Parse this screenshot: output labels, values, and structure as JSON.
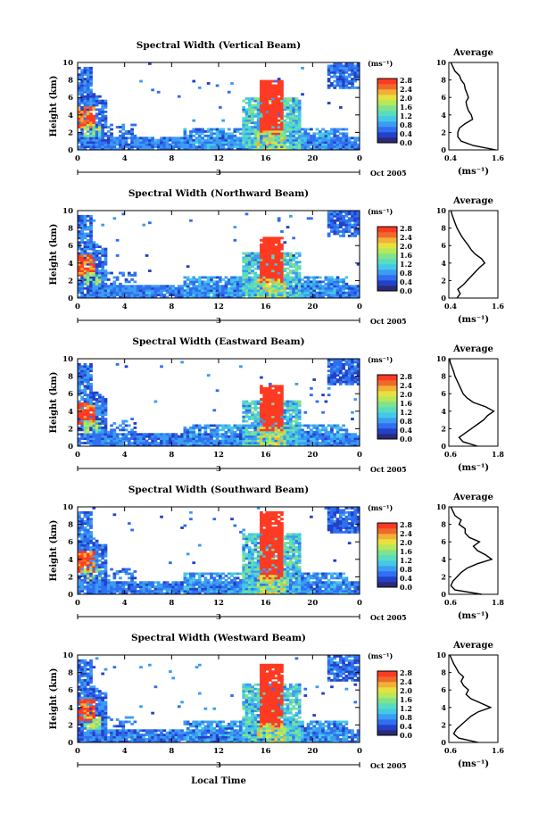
{
  "chart_data": [
    {
      "type": "heatmap",
      "title": "Spectral Width (Vertical Beam)",
      "ylabel": "Height (km)",
      "x_ticks": [
        "0",
        "4",
        "8",
        "12",
        "16",
        "20",
        "0"
      ],
      "day_marker": "3",
      "date_label": "Oct 2005",
      "xlim": [
        0,
        24
      ],
      "ylim": [
        0,
        10
      ],
      "colorbar": {
        "unit": "(ms⁻¹)",
        "ticks": [
          "2.8",
          "2.4",
          "2.0",
          "1.6",
          "1.2",
          "0.8",
          "0.4",
          "0.0"
        ],
        "range": [
          0.0,
          2.8
        ]
      },
      "storm": {
        "center_hour": 16.5,
        "top_km": 8.0
      },
      "average_profile": {
        "title": "Average",
        "xlabel": "(ms⁻¹)",
        "x_ticks": [
          "0.4",
          "1.6"
        ],
        "xlim": [
          0.4,
          1.6
        ],
        "y_ticks": [
          "0",
          "2",
          "4",
          "6",
          "8",
          "10"
        ],
        "height_km": [
          0.0,
          0.5,
          1.0,
          1.5,
          2.0,
          2.5,
          3.0,
          3.5,
          4.0,
          4.5,
          5.0,
          5.5,
          6.0,
          6.5,
          7.0,
          7.5,
          8.0,
          8.5,
          9.0,
          9.5,
          10.0
        ],
        "width_ms": [
          1.55,
          1.0,
          0.7,
          0.62,
          0.62,
          0.66,
          0.8,
          0.98,
          0.95,
          0.88,
          0.84,
          0.82,
          0.88,
          0.84,
          0.8,
          0.78,
          0.7,
          0.66,
          0.55,
          0.5,
          0.45
        ]
      }
    },
    {
      "type": "heatmap",
      "title": "Spectral Width (Northward Beam)",
      "ylabel": "Height (km)",
      "x_ticks": [
        "0",
        "4",
        "8",
        "12",
        "16",
        "20",
        "0"
      ],
      "day_marker": "3",
      "date_label": "Oct 2005",
      "xlim": [
        0,
        24
      ],
      "ylim": [
        0,
        10
      ],
      "colorbar": {
        "unit": "(ms⁻¹)",
        "ticks": [
          "2.8",
          "2.4",
          "2.0",
          "1.6",
          "1.2",
          "0.8",
          "0.4",
          "0.0"
        ],
        "range": [
          0.0,
          2.8
        ]
      },
      "storm": {
        "center_hour": 16.5,
        "top_km": 7.0
      },
      "average_profile": {
        "title": "Average",
        "xlabel": "(ms⁻¹)",
        "x_ticks": [
          "0.4",
          "1.6"
        ],
        "xlim": [
          0.4,
          1.6
        ],
        "y_ticks": [
          "0",
          "2",
          "4",
          "6",
          "8",
          "10"
        ],
        "height_km": [
          0.0,
          0.5,
          1.0,
          1.5,
          2.0,
          2.5,
          3.0,
          3.5,
          4.0,
          4.5,
          5.0,
          5.5,
          6.0,
          6.5,
          7.0,
          7.5,
          8.0,
          8.5,
          9.0,
          9.5,
          10.0
        ],
        "width_ms": [
          0.6,
          0.68,
          0.62,
          0.75,
          0.85,
          0.95,
          1.05,
          1.15,
          1.28,
          1.2,
          1.05,
          0.95,
          0.88,
          0.8,
          0.72,
          0.66,
          0.6,
          0.56,
          0.52,
          0.48,
          0.45
        ]
      }
    },
    {
      "type": "heatmap",
      "title": "Spectral Width (Eastward Beam)",
      "ylabel": "Height (km)",
      "x_ticks": [
        "0",
        "4",
        "8",
        "12",
        "16",
        "20",
        "0"
      ],
      "day_marker": "3",
      "date_label": "Oct 2005",
      "xlim": [
        0,
        24
      ],
      "ylim": [
        0,
        10
      ],
      "colorbar": {
        "unit": "(ms⁻¹)",
        "ticks": [
          "2.8",
          "2.4",
          "2.0",
          "1.6",
          "1.2",
          "0.8",
          "0.4",
          "0.0"
        ],
        "range": [
          0.0,
          2.8
        ]
      },
      "storm": {
        "center_hour": 16.5,
        "top_km": 7.0
      },
      "average_profile": {
        "title": "Average",
        "xlabel": "(ms⁻¹)",
        "x_ticks": [
          "0.6",
          "1.8"
        ],
        "xlim": [
          0.6,
          1.8
        ],
        "y_ticks": [
          "0",
          "2",
          "4",
          "6",
          "8",
          "10"
        ],
        "height_km": [
          0.0,
          0.5,
          1.0,
          1.5,
          2.0,
          2.5,
          3.0,
          3.5,
          4.0,
          4.5,
          5.0,
          5.5,
          6.0,
          6.5,
          7.0,
          7.5,
          8.0,
          8.5,
          9.0,
          9.5,
          10.0
        ],
        "width_ms": [
          1.3,
          0.95,
          0.85,
          1.0,
          1.15,
          1.3,
          1.45,
          1.55,
          1.7,
          1.5,
          1.2,
          1.05,
          0.95,
          0.9,
          0.85,
          0.8,
          0.75,
          0.72,
          0.68,
          0.64,
          0.62
        ]
      }
    },
    {
      "type": "heatmap",
      "title": "Spectral Width (Southward Beam)",
      "ylabel": "Height (km)",
      "x_ticks": [
        "0",
        "4",
        "8",
        "12",
        "16",
        "20",
        "0"
      ],
      "day_marker": "3",
      "date_label": "Oct 2005",
      "xlim": [
        0,
        24
      ],
      "ylim": [
        0,
        10
      ],
      "colorbar": {
        "unit": "(ms⁻¹)",
        "ticks": [
          "2.8",
          "2.4",
          "2.0",
          "1.6",
          "1.2",
          "0.8",
          "0.4",
          "0.0"
        ],
        "range": [
          0.0,
          2.8
        ]
      },
      "storm": {
        "center_hour": 16.5,
        "top_km": 9.5
      },
      "average_profile": {
        "title": "Average",
        "xlabel": "(ms⁻¹)",
        "x_ticks": [
          "0.6",
          "1.8"
        ],
        "xlim": [
          0.6,
          1.8
        ],
        "y_ticks": [
          "0",
          "2",
          "4",
          "6",
          "8",
          "10"
        ],
        "height_km": [
          0.0,
          0.5,
          1.0,
          1.5,
          2.0,
          2.5,
          3.0,
          3.5,
          4.0,
          4.5,
          5.0,
          5.5,
          6.0,
          6.5,
          7.0,
          7.5,
          8.0,
          8.5,
          9.0,
          9.5,
          10.0
        ],
        "width_ms": [
          1.4,
          0.75,
          0.65,
          0.7,
          0.8,
          0.9,
          1.05,
          1.3,
          1.65,
          1.5,
          1.3,
          1.2,
          1.35,
          1.1,
          1.0,
          1.0,
          0.85,
          0.9,
          0.75,
          0.7,
          0.65
        ]
      }
    },
    {
      "type": "heatmap",
      "title": "Spectral Width (Westward Beam)",
      "ylabel": "Height (km)",
      "x_ticks": [
        "0",
        "4",
        "8",
        "12",
        "16",
        "20",
        "0"
      ],
      "day_marker": "3",
      "date_label": "Oct 2005",
      "xlim": [
        0,
        24
      ],
      "ylim": [
        0,
        10
      ],
      "colorbar": {
        "unit": "(ms⁻¹)",
        "ticks": [
          "2.8",
          "2.4",
          "2.0",
          "1.6",
          "1.2",
          "0.8",
          "0.4",
          "0.0"
        ],
        "range": [
          0.0,
          2.8
        ]
      },
      "storm": {
        "center_hour": 16.5,
        "top_km": 9.0
      },
      "average_profile": {
        "title": "Average",
        "xlabel": "(ms⁻¹)",
        "x_ticks": [
          "0.6",
          "1.6"
        ],
        "xlim": [
          0.6,
          1.6
        ],
        "y_ticks": [
          "0",
          "2",
          "4",
          "6",
          "8",
          "10"
        ],
        "height_km": [
          0.0,
          0.5,
          1.0,
          1.5,
          2.0,
          2.5,
          3.0,
          3.5,
          4.0,
          4.5,
          5.0,
          5.5,
          6.0,
          6.5,
          7.0,
          7.5,
          8.0,
          8.5,
          9.0,
          9.5,
          10.0
        ],
        "width_ms": [
          1.2,
          0.8,
          0.7,
          0.75,
          0.85,
          0.95,
          1.05,
          1.2,
          1.45,
          1.25,
          1.05,
          0.95,
          1.0,
          0.9,
          0.85,
          0.9,
          0.8,
          0.75,
          0.7,
          0.66,
          0.62
        ]
      }
    }
  ],
  "figure": {
    "xlabel": "Local Time"
  },
  "colors": {
    "scale": [
      "#2a2a78",
      "#2340c8",
      "#2f6ff0",
      "#3c9cf2",
      "#45c8e6",
      "#58dcc0",
      "#7ee38c",
      "#b6e85a",
      "#e8e040",
      "#f2b038",
      "#ee6a2c",
      "#e43226"
    ],
    "storm_red": "#ff3a22"
  }
}
